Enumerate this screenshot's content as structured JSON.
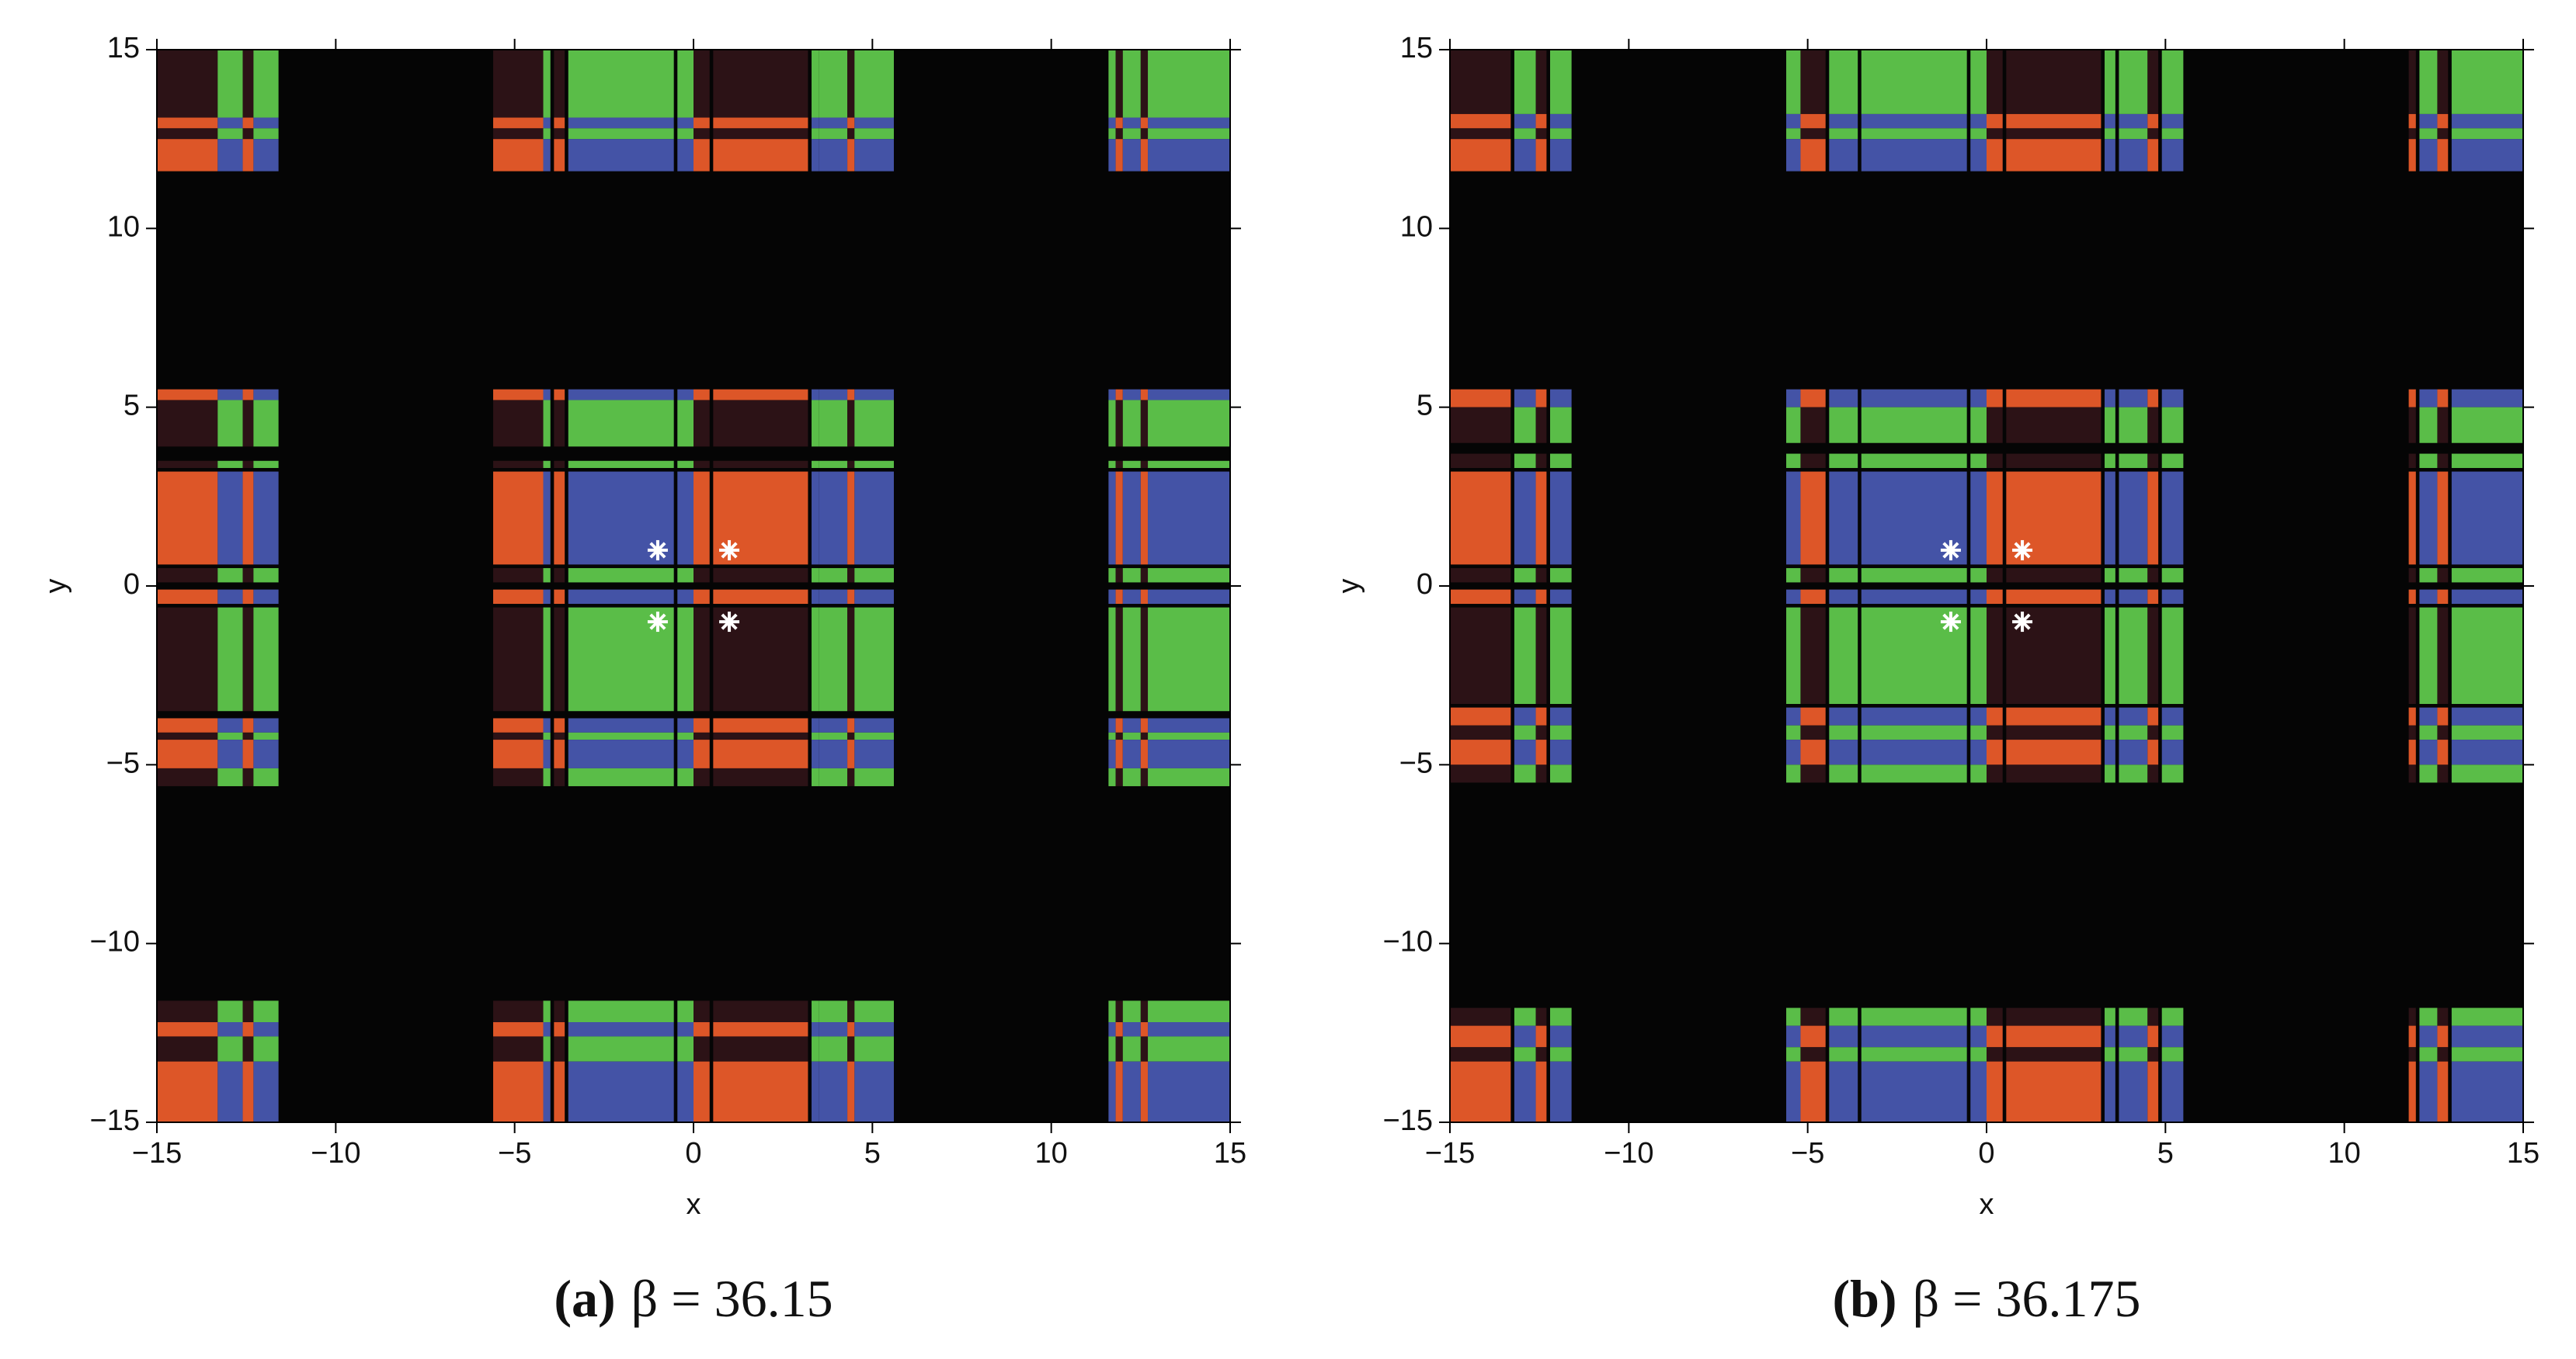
{
  "chart_data": [
    {
      "type": "basin",
      "caption_label": "(a)",
      "caption_text": "β = 36.15",
      "xlabel": "x",
      "ylabel": "y",
      "xlim": [
        -15,
        15
      ],
      "ylim": [
        -15,
        15
      ],
      "xticks": [
        {
          "value": -15,
          "label": "−15"
        },
        {
          "value": -10,
          "label": "−10"
        },
        {
          "value": -5,
          "label": "−5"
        },
        0,
        5,
        10,
        15
      ],
      "yticks": [
        {
          "value": -15,
          "label": "−15"
        },
        {
          "value": -10,
          "label": "−10"
        },
        {
          "value": -5,
          "label": "−5"
        },
        0,
        5,
        10,
        15
      ],
      "background": "#050505",
      "basin_colors": {
        "x+y+": "#dd5628",
        "x-y+": "#4453a6",
        "x-y-": "#5abd48",
        "x+y-": "#2c1216"
      },
      "x_bands": [
        {
          "range": [
            -15,
            -13.3
          ],
          "root": 1
        },
        {
          "range": [
            -13.3,
            -12.6
          ],
          "root": -1
        },
        {
          "range": [
            -12.6,
            -12.3
          ],
          "root": 1
        },
        {
          "range": [
            -12.3,
            -11.6
          ],
          "root": -1
        },
        {
          "range": [
            -5.6,
            -4.2
          ],
          "root": 1
        },
        {
          "range": [
            -4.2,
            -4.0
          ],
          "root": -1
        },
        {
          "range": [
            -3.9,
            -3.6
          ],
          "root": 1
        },
        {
          "range": [
            -3.5,
            -0.55
          ],
          "root": -1
        },
        {
          "range": [
            -0.45,
            0
          ],
          "root": -1
        },
        {
          "range": [
            0,
            0.45
          ],
          "root": 1
        },
        {
          "range": [
            0.55,
            3.2
          ],
          "root": 1
        },
        {
          "range": [
            3.3,
            3.5
          ],
          "root": -1
        },
        {
          "range": [
            3.5,
            4.3
          ],
          "root": -1
        },
        {
          "range": [
            4.3,
            4.5
          ],
          "root": 1
        },
        {
          "range": [
            4.5,
            5.6
          ],
          "root": -1
        },
        {
          "range": [
            11.6,
            11.8
          ],
          "root": -1
        },
        {
          "range": [
            11.8,
            12.0
          ],
          "root": 1
        },
        {
          "range": [
            12.0,
            12.5
          ],
          "root": -1
        },
        {
          "range": [
            12.5,
            12.7
          ],
          "root": 1
        },
        {
          "range": [
            12.7,
            15
          ],
          "root": -1
        }
      ],
      "y_bands": [
        {
          "range": [
            13.1,
            15
          ],
          "root": -1
        },
        {
          "range": [
            12.8,
            13.1
          ],
          "root": 1
        },
        {
          "range": [
            12.5,
            12.8
          ],
          "root": -1
        },
        {
          "range": [
            11.6,
            12.5
          ],
          "root": 1
        },
        {
          "range": [
            5.2,
            5.5
          ],
          "root": 1
        },
        {
          "range": [
            3.9,
            5.2
          ],
          "root": -1
        },
        {
          "range": [
            3.3,
            3.5
          ],
          "root": -1
        },
        {
          "range": [
            0.6,
            3.2
          ],
          "root": 1
        },
        {
          "range": [
            0.1,
            0.5
          ],
          "root": -1
        },
        {
          "range": [
            -0.5,
            -0.1
          ],
          "root": 1
        },
        {
          "range": [
            -3.5,
            -0.6
          ],
          "root": -1
        },
        {
          "range": [
            -4.1,
            -3.7
          ],
          "root": 1
        },
        {
          "range": [
            -4.3,
            -4.1
          ],
          "root": -1
        },
        {
          "range": [
            -5.1,
            -4.3
          ],
          "root": 1
        },
        {
          "range": [
            -5.6,
            -5.1
          ],
          "root": -1
        },
        {
          "range": [
            -12.2,
            -11.6
          ],
          "root": -1
        },
        {
          "range": [
            -12.6,
            -12.2
          ],
          "root": 1
        },
        {
          "range": [
            -13.3,
            -12.6
          ],
          "root": -1
        },
        {
          "range": [
            -15,
            -13.3
          ],
          "root": 1
        }
      ],
      "points": {
        "x": [
          -1,
          1,
          -1,
          1
        ],
        "y": [
          1,
          1,
          -1,
          -1
        ],
        "color": "#ffffff"
      }
    },
    {
      "type": "basin",
      "caption_label": "(b)",
      "caption_text": "β = 36.175",
      "xlabel": "x",
      "ylabel": "y",
      "xlim": [
        -15,
        15
      ],
      "ylim": [
        -15,
        15
      ],
      "xticks": [
        {
          "value": -15,
          "label": "−15"
        },
        {
          "value": -10,
          "label": "−10"
        },
        {
          "value": -5,
          "label": "−5"
        },
        0,
        5,
        10,
        15
      ],
      "yticks": [
        {
          "value": -15,
          "label": "−15"
        },
        {
          "value": -10,
          "label": "−10"
        },
        {
          "value": -5,
          "label": "−5"
        },
        0,
        5,
        10,
        15
      ],
      "background": "#050505",
      "basin_colors": {
        "x+y+": "#dd5628",
        "x-y+": "#4453a6",
        "x-y-": "#5abd48",
        "x+y-": "#2c1216"
      },
      "x_bands": [
        {
          "range": [
            -15,
            -13.3
          ],
          "root": 1
        },
        {
          "range": [
            -13.2,
            -12.6
          ],
          "root": -1
        },
        {
          "range": [
            -12.6,
            -12.3
          ],
          "root": 1
        },
        {
          "range": [
            -12.2,
            -11.6
          ],
          "root": -1
        },
        {
          "range": [
            -5.6,
            -5.2
          ],
          "root": -1
        },
        {
          "range": [
            -5.2,
            -4.5
          ],
          "root": 1
        },
        {
          "range": [
            -4.4,
            -3.6
          ],
          "root": -1
        },
        {
          "range": [
            -3.5,
            -0.55
          ],
          "root": -1
        },
        {
          "range": [
            -0.45,
            0
          ],
          "root": -1
        },
        {
          "range": [
            0,
            0.45
          ],
          "root": 1
        },
        {
          "range": [
            0.55,
            3.2
          ],
          "root": 1
        },
        {
          "range": [
            3.3,
            3.6
          ],
          "root": -1
        },
        {
          "range": [
            3.7,
            4.5
          ],
          "root": -1
        },
        {
          "range": [
            4.5,
            4.8
          ],
          "root": 1
        },
        {
          "range": [
            4.9,
            5.5
          ],
          "root": -1
        },
        {
          "range": [
            11.8,
            12.0
          ],
          "root": 1
        },
        {
          "range": [
            12.1,
            12.6
          ],
          "root": -1
        },
        {
          "range": [
            12.6,
            12.9
          ],
          "root": 1
        },
        {
          "range": [
            13.0,
            15
          ],
          "root": -1
        }
      ],
      "y_bands": [
        {
          "range": [
            13.2,
            15
          ],
          "root": -1
        },
        {
          "range": [
            12.8,
            13.2
          ],
          "root": 1
        },
        {
          "range": [
            12.5,
            12.8
          ],
          "root": -1
        },
        {
          "range": [
            11.6,
            12.5
          ],
          "root": 1
        },
        {
          "range": [
            5.0,
            5.5
          ],
          "root": 1
        },
        {
          "range": [
            4.0,
            5.0
          ],
          "root": -1
        },
        {
          "range": [
            3.3,
            3.7
          ],
          "root": -1
        },
        {
          "range": [
            0.6,
            3.2
          ],
          "root": 1
        },
        {
          "range": [
            0.1,
            0.5
          ],
          "root": -1
        },
        {
          "range": [
            -0.5,
            -0.1
          ],
          "root": 1
        },
        {
          "range": [
            -3.3,
            -0.6
          ],
          "root": -1
        },
        {
          "range": [
            -3.9,
            -3.4
          ],
          "root": 1
        },
        {
          "range": [
            -4.3,
            -3.9
          ],
          "root": -1
        },
        {
          "range": [
            -5.0,
            -4.3
          ],
          "root": 1
        },
        {
          "range": [
            -5.5,
            -5.0
          ],
          "root": -1
        },
        {
          "range": [
            -12.3,
            -11.8
          ],
          "root": -1
        },
        {
          "range": [
            -12.9,
            -12.3
          ],
          "root": 1
        },
        {
          "range": [
            -13.3,
            -12.9
          ],
          "root": -1
        },
        {
          "range": [
            -15,
            -13.3
          ],
          "root": 1
        }
      ],
      "points": {
        "x": [
          -1,
          1,
          -1,
          1
        ],
        "y": [
          1,
          1,
          -1,
          -1
        ],
        "color": "#ffffff"
      }
    }
  ]
}
